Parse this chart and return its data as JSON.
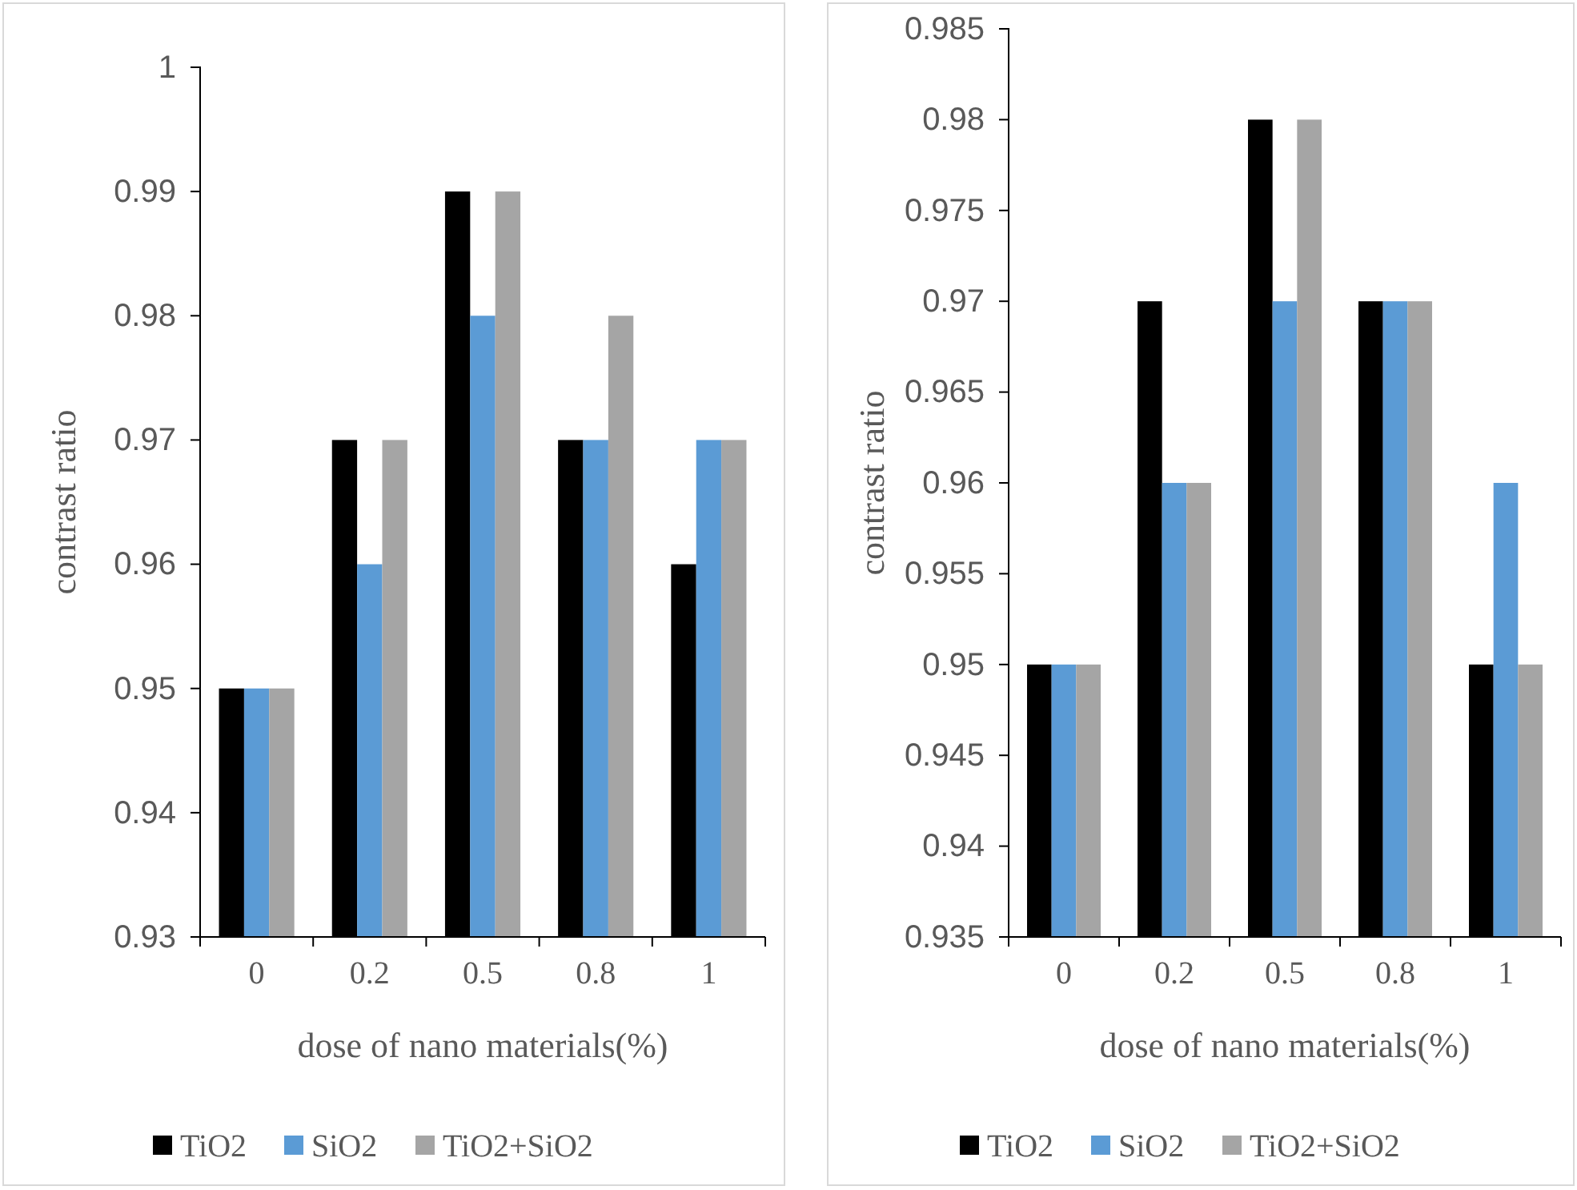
{
  "chart_data": [
    {
      "type": "bar",
      "categories": [
        "0",
        "0.2",
        "0.5",
        "0.8",
        "1"
      ],
      "xlabel": "dose of nano materials(%)",
      "ylabel": "contrast ratio",
      "ylim": [
        0.93,
        1
      ],
      "yticks": [
        0.93,
        0.94,
        0.95,
        0.96,
        0.97,
        0.98,
        0.99,
        1
      ],
      "grid": false,
      "legend": "bottom",
      "series": [
        {
          "name": "TiO2",
          "color": "#000000",
          "values": [
            0.95,
            0.97,
            0.99,
            0.97,
            0.96
          ]
        },
        {
          "name": "SiO2",
          "color": "#5b9bd5",
          "values": [
            0.95,
            0.96,
            0.98,
            0.97,
            0.97
          ]
        },
        {
          "name": "TiO2+SiO2",
          "color": "#a5a5a5",
          "values": [
            0.95,
            0.97,
            0.99,
            0.98,
            0.97
          ]
        }
      ]
    },
    {
      "type": "bar",
      "categories": [
        "0",
        "0.2",
        "0.5",
        "0.8",
        "1"
      ],
      "xlabel": "dose of nano materials(%)",
      "ylabel": "contrast ratio",
      "ylim": [
        0.935,
        0.985
      ],
      "yticks": [
        0.935,
        0.94,
        0.945,
        0.95,
        0.955,
        0.96,
        0.965,
        0.97,
        0.975,
        0.98,
        0.985
      ],
      "grid": false,
      "legend": "bottom",
      "series": [
        {
          "name": "TiO2",
          "color": "#000000",
          "values": [
            0.95,
            0.97,
            0.98,
            0.97,
            0.95
          ]
        },
        {
          "name": "SiO2",
          "color": "#5b9bd5",
          "values": [
            0.95,
            0.96,
            0.97,
            0.97,
            0.96
          ]
        },
        {
          "name": "TiO2+SiO2",
          "color": "#a5a5a5",
          "values": [
            0.95,
            0.96,
            0.98,
            0.97,
            0.95
          ]
        }
      ]
    }
  ]
}
